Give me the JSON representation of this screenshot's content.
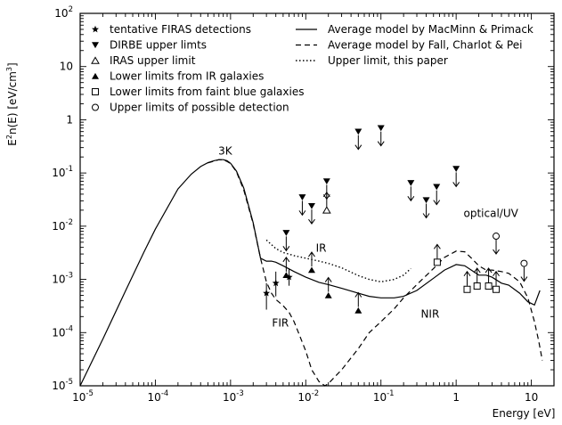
{
  "chart_data": {
    "type": "scatter",
    "log_x": true,
    "log_y": true,
    "xlim": [
      1e-05,
      20
    ],
    "ylim": [
      1e-05,
      100
    ],
    "xlabel": "Energy [eV]",
    "ylabel": {
      "pre": "E",
      "sup1": "2",
      "mid": "n(E) [eV/cm",
      "sup2": "3",
      "post": "]"
    },
    "x_tick_labels": [
      {
        "base": "10",
        "exp": "-5"
      },
      {
        "base": "10",
        "exp": "-4"
      },
      {
        "base": "10",
        "exp": "-3"
      },
      {
        "base": "10",
        "exp": "-2"
      },
      {
        "base": "10",
        "exp": "-1"
      },
      {
        "base": "1",
        "exp": ""
      },
      {
        "base": "10",
        "exp": ""
      }
    ],
    "y_tick_labels": [
      {
        "base": "10",
        "exp": "-5"
      },
      {
        "base": "10",
        "exp": "-4"
      },
      {
        "base": "10",
        "exp": "-3"
      },
      {
        "base": "10",
        "exp": "-2"
      },
      {
        "base": "10",
        "exp": "-1"
      },
      {
        "base": "1",
        "exp": ""
      },
      {
        "base": "10",
        "exp": ""
      },
      {
        "base": "10",
        "exp": "2"
      }
    ],
    "legend_left": [
      {
        "marker": "star",
        "label": "tentative FIRAS detections"
      },
      {
        "marker": "tri-down",
        "label": "DIRBE upper limts"
      },
      {
        "marker": "tri-up-open",
        "label": "IRAS upper limit"
      },
      {
        "marker": "tri-up",
        "label": "Lower limits from IR galaxies"
      },
      {
        "marker": "square-open",
        "label": "Lower limits from faint blue galaxies"
      },
      {
        "marker": "circle-open",
        "label": "Upper limits of possible detection"
      }
    ],
    "legend_right": [
      {
        "line": "solid",
        "label": "Average model by MacMinn & Primack"
      },
      {
        "line": "dashed",
        "label": "Average model by Fall, Charlot & Pei"
      },
      {
        "line": "dotted",
        "label": "Upper limit, this paper"
      }
    ],
    "annotations": [
      {
        "text": "3K",
        "x": 0.00085,
        "y": 0.22
      },
      {
        "text": "IR",
        "x": 0.016,
        "y": 0.0033
      },
      {
        "text": "FIR",
        "x": 0.0046,
        "y": 0.00013
      },
      {
        "text": "NIR",
        "x": 0.45,
        "y": 0.00019
      },
      {
        "text": "optical/UV",
        "x": 2.9,
        "y": 0.015
      }
    ],
    "series": [
      {
        "name": "Average model by MacMinn & Primack",
        "style": "solid",
        "x": [
          1e-05,
          2e-05,
          4e-05,
          7e-05,
          0.0001,
          0.0002,
          0.0003,
          0.0004,
          0.0005,
          0.0006,
          0.0007,
          0.0008,
          0.0009,
          0.001,
          0.0012,
          0.0015,
          0.002,
          0.0025,
          0.003,
          0.0035,
          0.004,
          0.005,
          0.007,
          0.01,
          0.015,
          0.02,
          0.03,
          0.05,
          0.07,
          0.1,
          0.15,
          0.2,
          0.3,
          0.5,
          0.7,
          1.0,
          1.3,
          1.7,
          2.0,
          2.5,
          3.0,
          4.0,
          5.0,
          7.0,
          9.0,
          11.0,
          13.0
        ],
        "y": [
          1e-05,
          7.5e-05,
          0.0006,
          0.0032,
          0.0088,
          0.05,
          0.095,
          0.132,
          0.156,
          0.17,
          0.178,
          0.178,
          0.17,
          0.152,
          0.108,
          0.052,
          0.0115,
          0.0025,
          0.0022,
          0.0022,
          0.0021,
          0.0018,
          0.0014,
          0.0011,
          0.00088,
          0.0008,
          0.00068,
          0.00055,
          0.00048,
          0.00045,
          0.00045,
          0.00048,
          0.00062,
          0.00105,
          0.0015,
          0.0019,
          0.0018,
          0.0014,
          0.0012,
          0.0012,
          0.0011,
          0.00085,
          0.00078,
          0.00055,
          0.00038,
          0.00033,
          0.00062
        ]
      },
      {
        "name": "Average model by Fall, Charlot & Pei",
        "style": "dashed",
        "x": [
          0.0005,
          0.0007,
          0.0008,
          0.0009,
          0.001,
          0.0012,
          0.0015,
          0.002,
          0.0025,
          0.003,
          0.0035,
          0.004,
          0.005,
          0.006,
          0.007,
          0.008,
          0.01,
          0.012,
          0.015,
          0.018,
          0.02,
          0.03,
          0.05,
          0.07,
          0.1,
          0.15,
          0.2,
          0.3,
          0.5,
          0.7,
          1.0,
          1.3,
          1.6,
          2.0,
          2.5,
          3.0,
          4.0,
          5.0,
          7.0,
          9.0,
          11.0,
          12.5,
          14.0
        ],
        "y": [
          0.155,
          0.178,
          0.175,
          0.165,
          0.15,
          0.105,
          0.048,
          0.011,
          0.0025,
          0.0009,
          0.00055,
          0.00042,
          0.00032,
          0.00024,
          0.00016,
          0.0001,
          4.5e-05,
          2e-05,
          1.2e-05,
          1e-05,
          1.1e-05,
          2e-05,
          5e-05,
          0.0001,
          0.00016,
          0.00028,
          0.00045,
          0.0008,
          0.0016,
          0.0026,
          0.0034,
          0.0033,
          0.0025,
          0.0018,
          0.0015,
          0.0015,
          0.0014,
          0.0013,
          0.0009,
          0.00045,
          0.00016,
          7e-05,
          3e-05
        ]
      },
      {
        "name": "Upper limit, this paper",
        "style": "dotted",
        "x": [
          0.003,
          0.004,
          0.005,
          0.007,
          0.01,
          0.015,
          0.02,
          0.03,
          0.05,
          0.07,
          0.1,
          0.15,
          0.2,
          0.25
        ],
        "y": [
          0.0055,
          0.0038,
          0.0032,
          0.0028,
          0.0025,
          0.0022,
          0.002,
          0.00165,
          0.00118,
          0.001,
          0.0009,
          0.001,
          0.0012,
          0.0016
        ]
      }
    ],
    "points": [
      {
        "marker": "star",
        "x": 0.003,
        "y": 0.00055,
        "y_err_low": 0.00027,
        "y_err_high": 0.00085
      },
      {
        "marker": "star",
        "x": 0.004,
        "y": 0.00085,
        "y_err_low": 0.00048,
        "y_err_high": 0.0014
      },
      {
        "marker": "star",
        "x": 0.006,
        "y": 0.0011,
        "y_err_low": 0.00076,
        "y_err_high": 0.0016
      },
      {
        "marker": "tri-down",
        "x": 0.0055,
        "y": 0.0075
      },
      {
        "marker": "tri-down",
        "x": 0.009,
        "y": 0.035
      },
      {
        "marker": "tri-down",
        "x": 0.012,
        "y": 0.024
      },
      {
        "marker": "tri-down",
        "x": 0.019,
        "y": 0.07
      },
      {
        "marker": "tri-down",
        "x": 0.05,
        "y": 0.6
      },
      {
        "marker": "tri-down",
        "x": 0.1,
        "y": 0.7
      },
      {
        "marker": "tri-down",
        "x": 0.25,
        "y": 0.065
      },
      {
        "marker": "tri-down",
        "x": 0.4,
        "y": 0.031
      },
      {
        "marker": "tri-down",
        "x": 0.55,
        "y": 0.055
      },
      {
        "marker": "tri-down",
        "x": 1.0,
        "y": 0.12
      },
      {
        "marker": "tri-up-open",
        "x": 0.019,
        "y": 0.02
      },
      {
        "marker": "tri-up",
        "x": 0.0055,
        "y": 0.0012
      },
      {
        "marker": "tri-up",
        "x": 0.012,
        "y": 0.0015
      },
      {
        "marker": "tri-up",
        "x": 0.02,
        "y": 0.0005
      },
      {
        "marker": "tri-up",
        "x": 0.05,
        "y": 0.00026
      },
      {
        "marker": "square-open",
        "x": 0.56,
        "y": 0.0021
      },
      {
        "marker": "square-open",
        "x": 1.4,
        "y": 0.00065
      },
      {
        "marker": "square-open",
        "x": 1.9,
        "y": 0.00075
      },
      {
        "marker": "square-open",
        "x": 2.7,
        "y": 0.00075
      },
      {
        "marker": "square-open",
        "x": 3.4,
        "y": 0.00065
      },
      {
        "marker": "circle-open",
        "x": 3.4,
        "y": 0.0065
      },
      {
        "marker": "circle-open",
        "x": 8.0,
        "y": 0.002
      }
    ]
  }
}
